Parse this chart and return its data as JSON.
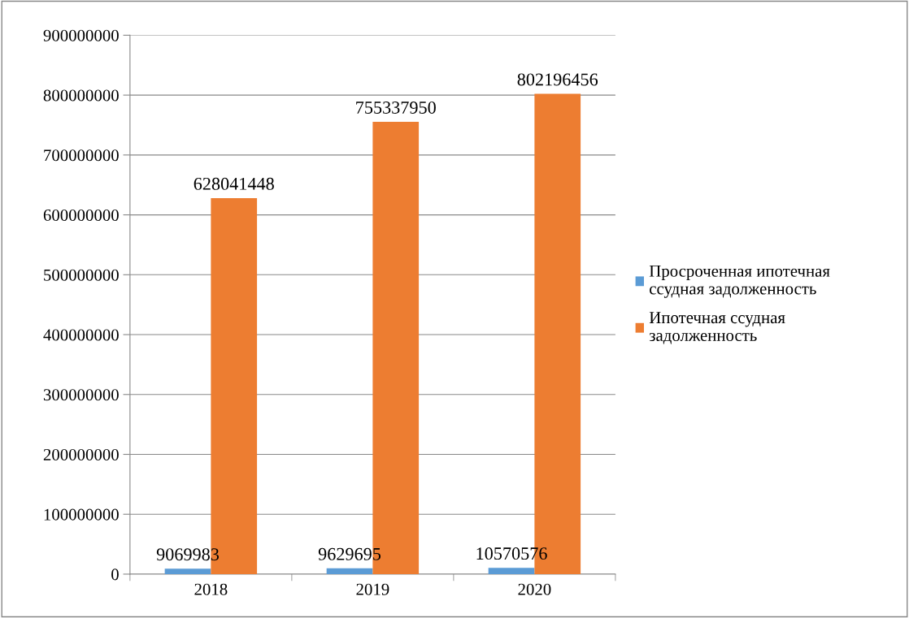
{
  "chart_data": {
    "type": "bar",
    "categories": [
      "2018",
      "2019",
      "2020"
    ],
    "series": [
      {
        "name": "Просроченная ипотечная\nссудная задолженность",
        "color": "#5b9bd5",
        "values": [
          9069983,
          9629695,
          10570576
        ]
      },
      {
        "name": "Ипотечная ссудная\nзадолженность",
        "color": "#ed7d31",
        "values": [
          628041448,
          755337950,
          802196456
        ]
      }
    ],
    "ylim": [
      0,
      900000000
    ],
    "yticks": [
      0,
      100000000,
      200000000,
      300000000,
      400000000,
      500000000,
      600000000,
      700000000,
      800000000,
      900000000
    ],
    "grid": "y",
    "legend": "right",
    "data_labels": true
  }
}
